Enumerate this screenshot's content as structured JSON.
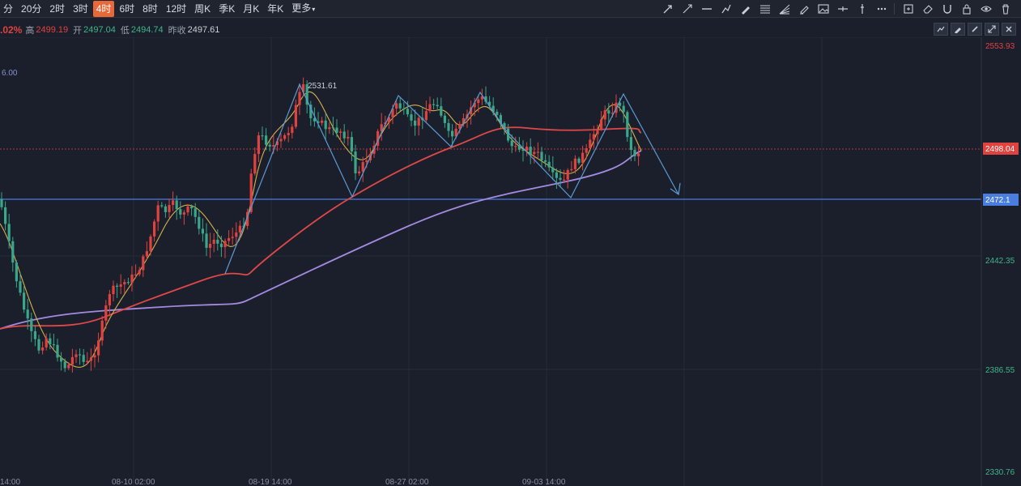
{
  "toolbar": {
    "timeframes": [
      {
        "label": "分",
        "active": false
      },
      {
        "label": "20分",
        "active": false
      },
      {
        "label": "2时",
        "active": false
      },
      {
        "label": "3时",
        "active": false
      },
      {
        "label": "4时",
        "active": true
      },
      {
        "label": "6时",
        "active": false
      },
      {
        "label": "8时",
        "active": false
      },
      {
        "label": "12时",
        "active": false
      },
      {
        "label": "周K",
        "active": false
      },
      {
        "label": "季K",
        "active": false
      },
      {
        "label": "月K",
        "active": false
      },
      {
        "label": "年K",
        "active": false
      }
    ],
    "more_label": "更多",
    "more_arrow": "▾",
    "tools": [
      "ray-arrow-icon",
      "arrow-line-icon",
      "horizontal-line-icon",
      "polyline-icon",
      "pen-icon",
      "fibonacci-icon",
      "fan-icon",
      "brush-icon",
      "image-icon",
      "price-line-icon",
      "vertical-line-icon",
      "more-dots-icon",
      "note-icon",
      "eraser-icon",
      "magnet-icon",
      "lock-icon",
      "eye-icon",
      "trash-icon"
    ]
  },
  "quote": {
    "change": ".02%",
    "high_label": "高",
    "high": "2499.19",
    "open_label": "开",
    "open": "2497.04",
    "low_label": "低",
    "low": "2494.74",
    "prev_close_label": "昨收",
    "prev_close": "2497.61"
  },
  "chart_tools": [
    "indicator-icon",
    "edit-icon",
    "brush-icon",
    "fullscreen-icon",
    "close-icon"
  ],
  "chart_data": {
    "type": "candlestick",
    "y_axis_labels": [
      "2553.93",
      "2442.35",
      "2386.55",
      "2330.76"
    ],
    "current_price": "2498.04",
    "line_price": "2472.1",
    "x_axis_labels": [
      "14:00",
      "08-10 02:00",
      "08-19 14:00",
      "08-27 02:00",
      "09-03 14:00"
    ],
    "top_left_value": "6.00",
    "annotation": "2531.61",
    "ylim": [
      2330.76,
      2553.93
    ],
    "colors": {
      "up": "#e0433f",
      "down": "#3aa68a",
      "ma_fast": "#d4b14a",
      "ma_mid": "#e04848",
      "ma_slow": "#a48ae0",
      "drawing": "#5b9bd5",
      "hline": "#4a7de0"
    }
  }
}
